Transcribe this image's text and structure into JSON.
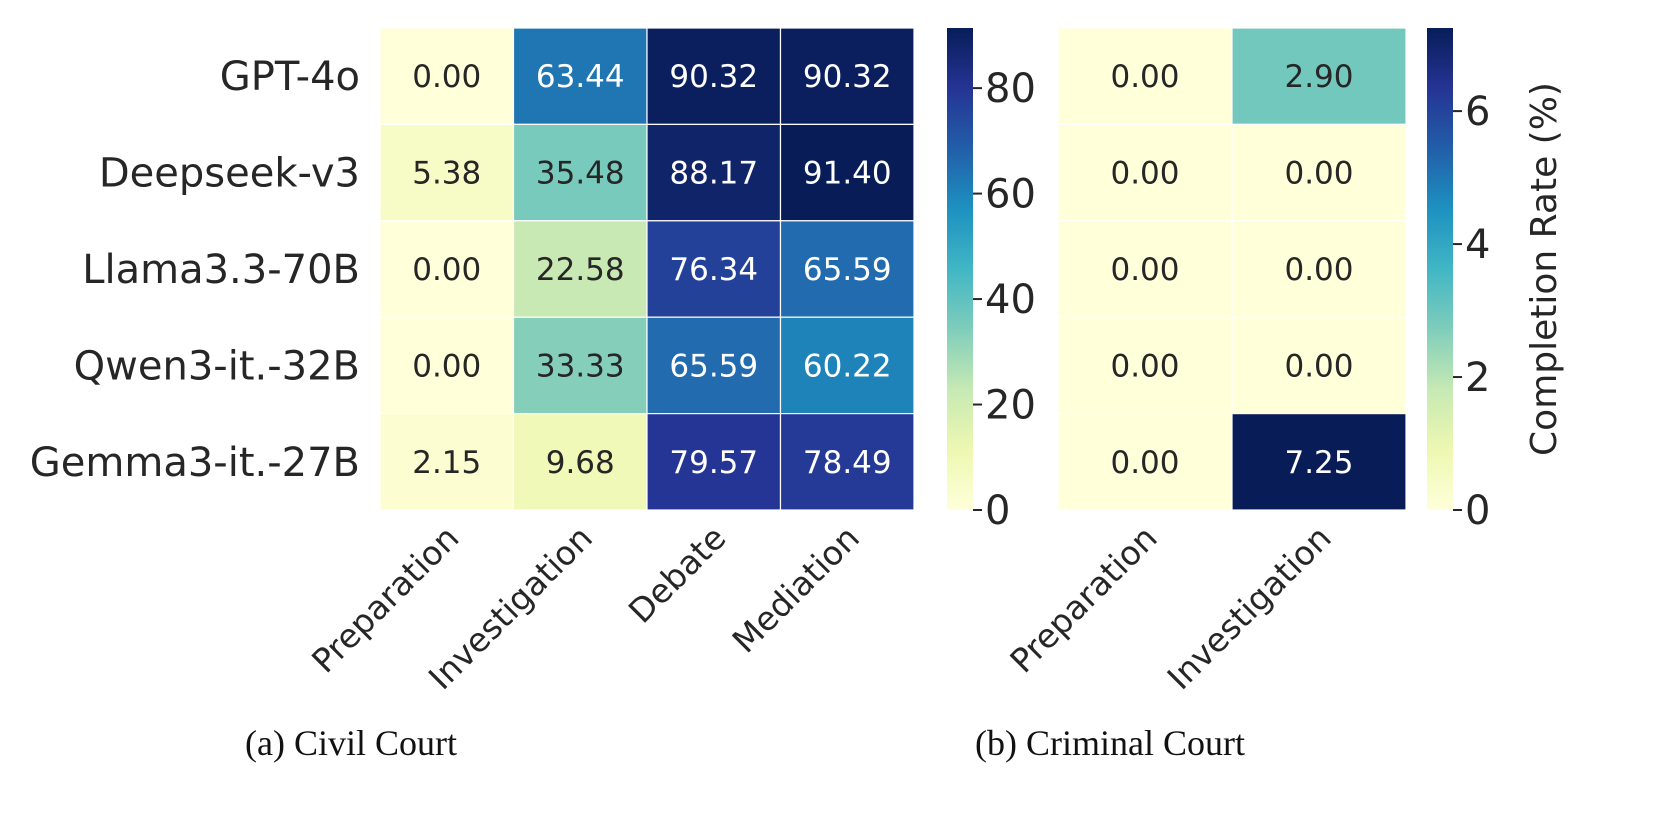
{
  "chart_data": [
    {
      "type": "heatmap",
      "caption": "(a) Civil Court",
      "rows": [
        "GPT-4o",
        "Deepseek-v3",
        "Llama3.3-70B",
        "Qwen3-it.-32B",
        "Gemma3-it.-27B"
      ],
      "columns": [
        "Preparation",
        "Investigation",
        "Debate",
        "Mediation"
      ],
      "values": [
        [
          0.0,
          63.44,
          90.32,
          90.32
        ],
        [
          5.38,
          35.48,
          88.17,
          91.4
        ],
        [
          0.0,
          22.58,
          76.34,
          65.59
        ],
        [
          0.0,
          33.33,
          65.59,
          60.22
        ],
        [
          2.15,
          9.68,
          79.57,
          78.49
        ]
      ],
      "value_labels": [
        [
          "0.00",
          "63.44",
          "90.32",
          "90.32"
        ],
        [
          "5.38",
          "35.48",
          "88.17",
          "91.40"
        ],
        [
          "0.00",
          "22.58",
          "76.34",
          "65.59"
        ],
        [
          "0.00",
          "33.33",
          "65.59",
          "60.22"
        ],
        [
          "2.15",
          "9.68",
          "79.57",
          "78.49"
        ]
      ],
      "colorbar": {
        "vmin": 0,
        "vmax": 91.4,
        "ticks": [
          0,
          20,
          40,
          60,
          80
        ],
        "tick_labels": [
          "0",
          "20",
          "40",
          "60",
          "80"
        ],
        "label": ""
      },
      "colormap": "YlGnBu"
    },
    {
      "type": "heatmap",
      "caption": "(b) Criminal Court",
      "rows": [
        "GPT-4o",
        "Deepseek-v3",
        "Llama3.3-70B",
        "Qwen3-it.-32B",
        "Gemma3-it.-27B"
      ],
      "columns": [
        "Preparation",
        "Investigation"
      ],
      "values": [
        [
          0.0,
          2.9
        ],
        [
          0.0,
          0.0
        ],
        [
          0.0,
          0.0
        ],
        [
          0.0,
          0.0
        ],
        [
          0.0,
          7.25
        ]
      ],
      "value_labels": [
        [
          "0.00",
          "2.90"
        ],
        [
          "0.00",
          "0.00"
        ],
        [
          "0.00",
          "0.00"
        ],
        [
          "0.00",
          "0.00"
        ],
        [
          "0.00",
          "7.25"
        ]
      ],
      "colorbar": {
        "vmin": 0,
        "vmax": 7.25,
        "ticks": [
          0,
          2,
          4,
          6
        ],
        "tick_labels": [
          "0",
          "2",
          "4",
          "6"
        ],
        "label": "Completion Rate (%)"
      },
      "colormap": "YlGnBu"
    }
  ],
  "colors": {
    "stops": [
      "#ffffd9",
      "#edf8b1",
      "#c7e9b4",
      "#7fcdbb",
      "#41b6c4",
      "#1d91c0",
      "#225ea8",
      "#253494",
      "#081d58"
    ],
    "dark_text": "#262626",
    "light_text": "#ffffff"
  }
}
